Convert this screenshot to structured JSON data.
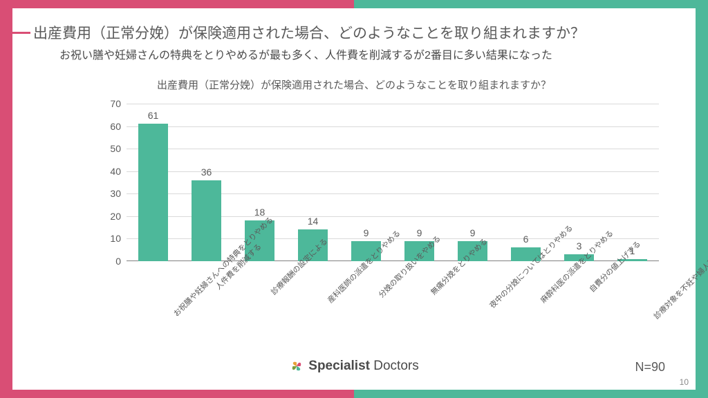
{
  "header": {
    "title": "出産費用（正常分娩）が保険適用された場合、どのようなことを取り組まれますか？",
    "subtitle": "お祝い膳や妊婦さんの特典をとりやめるが最も多く、人件費を削減するが2番目に多い結果になった",
    "tick_color": "#d94e75"
  },
  "chart": {
    "type": "bar",
    "title": "出産費用（正常分娩）が保険適用された場合、どのようなことを取り組まれますか？",
    "ylim": [
      0,
      70
    ],
    "ytick_step": 10,
    "bar_color": "#4db89a",
    "grid_color": "#d9d9d9",
    "axis_color": "#808080",
    "background_color": "#ffffff",
    "bar_width_ratio": 0.55,
    "label_fontsize": 14,
    "xlabel_fontsize": 11,
    "xlabel_rotation": -45,
    "categories": [
      "お祝膳や妊婦さんへの特典をとりやめる",
      "人件費を削減する",
      "診療報酬の設定による",
      "産科医師の派遣をとりやめる",
      "分娩の取り扱いをやめる",
      "無痛分娩をとりやめる",
      "夜中の分娩についてはとりやめる",
      "麻酔科医の派遣をとりやめる",
      "自費分の値上げする",
      "診療対象を不妊や婦人科領域にシフトする"
    ],
    "values": [
      61,
      36,
      18,
      14,
      9,
      9,
      9,
      6,
      3,
      1
    ]
  },
  "footer": {
    "sample_size": "N=90",
    "page_number": "10",
    "logo_text_bold": "Specialist",
    "logo_text_rest": " Doctors",
    "logo_colors": [
      "#d94e75",
      "#4db89a",
      "#7b9e3f",
      "#e8a23a"
    ]
  },
  "frame": {
    "left_bg": "#d94e75",
    "right_bg": "#4db89a",
    "content_bg": "#ffffff"
  }
}
